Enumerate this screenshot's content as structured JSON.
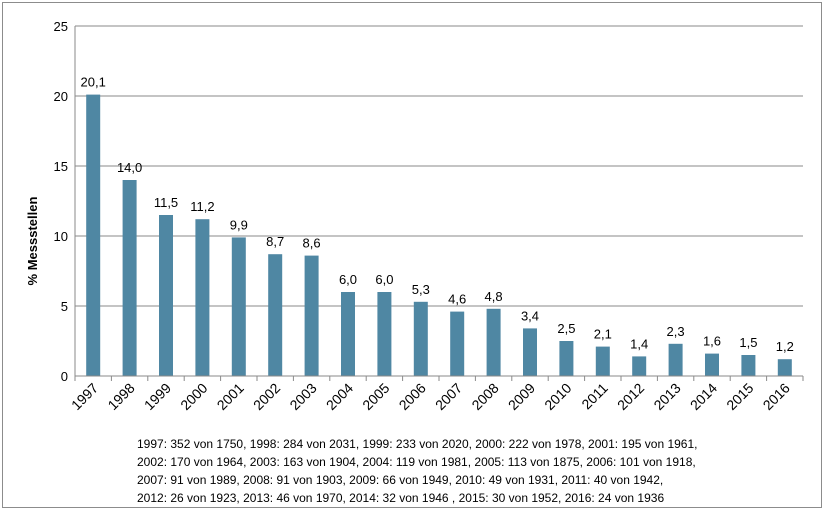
{
  "chart_data": {
    "type": "bar",
    "title": "",
    "xlabel": "",
    "ylabel": "% Messstellen",
    "ylim": [
      0,
      25
    ],
    "yticks": [
      "0",
      "5",
      "10",
      "15",
      "20",
      "25"
    ],
    "grid": true,
    "legend": "none",
    "categories": [
      "1997",
      "1998",
      "1999",
      "2000",
      "2001",
      "2002",
      "2003",
      "2004",
      "2005",
      "2006",
      "2007",
      "2008",
      "2009",
      "2010",
      "2011",
      "2012",
      "2013",
      "2014",
      "2015",
      "2016"
    ],
    "values": [
      20.1,
      14.0,
      11.5,
      11.2,
      9.9,
      8.7,
      8.6,
      6.0,
      6.0,
      5.3,
      4.6,
      4.8,
      3.4,
      2.5,
      2.1,
      1.4,
      2.3,
      1.6,
      1.5,
      1.2
    ],
    "data_labels": [
      "20,1",
      "14,0",
      "11,5",
      "11,2",
      "9,9",
      "8,7",
      "8,6",
      "6,0",
      "6,0",
      "5,3",
      "4,6",
      "4,8",
      "3,4",
      "2,5",
      "2,1",
      "1,4",
      "2,3",
      "1,6",
      "1,5",
      "1,2"
    ],
    "bar_color": "#4f87a3"
  },
  "footnote": {
    "lines": [
      "1997: 352 von 1750, 1998: 284 von 2031, 1999: 233 von 2020, 2000: 222 von 1978, 2001: 195 von 1961,",
      "2002: 170 von 1964, 2003: 163 von 1904, 2004: 119 von 1981, 2005: 113 von 1875, 2006: 101 von 1918,",
      "2007: 91 von 1989, 2008: 91 von 1903, 2009: 66 von 1949, 2010: 49 von 1931, 2011: 40 von 1942,",
      "2012: 26 von 1923, 2013: 46 von 1970, 2014: 32 von 1946 , 2015: 30 von 1952, 2016: 24 von 1936"
    ]
  }
}
